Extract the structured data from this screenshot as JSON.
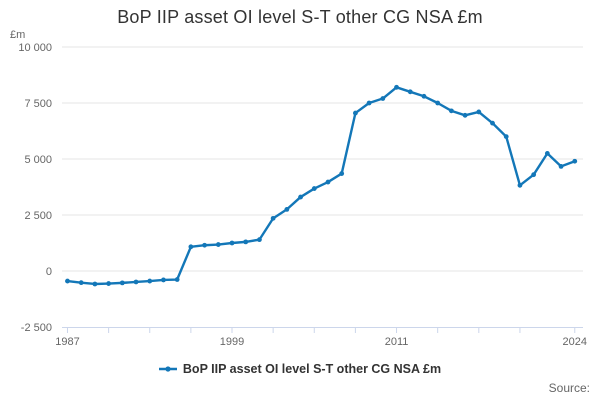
{
  "title": "BoP IIP asset OI level S-T other CG NSA £m",
  "y_axis": {
    "unit_label": "£m",
    "ticks": [
      {
        "value": 10000,
        "label": "10 000"
      },
      {
        "value": 7500,
        "label": "7 500"
      },
      {
        "value": 5000,
        "label": "5 000"
      },
      {
        "value": 2500,
        "label": "2 500"
      },
      {
        "value": 0,
        "label": "0"
      },
      {
        "value": -2500,
        "label": "-2 500"
      }
    ]
  },
  "x_axis": {
    "tick_years": [
      1987,
      1990,
      1993,
      1996,
      1999,
      2002,
      2005,
      2008,
      2011,
      2014,
      2017,
      2020,
      2024
    ],
    "labels": [
      {
        "year": 1987,
        "label": "1987"
      },
      {
        "year": 1999,
        "label": "1999"
      },
      {
        "year": 2011,
        "label": "2011"
      },
      {
        "year": 2024,
        "label": "2024"
      }
    ]
  },
  "legend": {
    "label": "BoP IIP asset OI level S-T other CG NSA £m"
  },
  "source": {
    "text": "Source:"
  },
  "colors": {
    "line": "#1377b8",
    "grid": "#e6e6e6",
    "axis": "#ccd6eb",
    "title_text": "#333333",
    "axis_text": "#666666",
    "legend_text": "#333333"
  },
  "chart_data": {
    "type": "line",
    "title": "BoP IIP asset OI level S-T other CG NSA £m",
    "xlabel": "",
    "ylabel": "£m",
    "x_range": [
      1986.6,
      2024.6
    ],
    "y_range": [
      -2500,
      10000
    ],
    "grid": "horizontal",
    "legend_position": "bottom-center",
    "series": [
      {
        "name": "BoP IIP asset OI level S-T other CG NSA £m",
        "x": [
          1987,
          1988,
          1989,
          1990,
          1991,
          1992,
          1993,
          1994,
          1995,
          1996,
          1997,
          1998,
          1999,
          2000,
          2001,
          2002,
          2003,
          2004,
          2005,
          2006,
          2007,
          2008,
          2009,
          2010,
          2011,
          2012,
          2013,
          2014,
          2015,
          2016,
          2017,
          2018,
          2019,
          2020,
          2021,
          2022,
          2023,
          2024
        ],
        "values": [
          -450,
          -520,
          -580,
          -560,
          -530,
          -490,
          -450,
          -400,
          -380,
          1080,
          1150,
          1180,
          1250,
          1300,
          1400,
          2350,
          2750,
          3300,
          3680,
          3970,
          4350,
          7050,
          7500,
          7700,
          8200,
          8000,
          7800,
          7500,
          7150,
          6950,
          7100,
          6600,
          6000,
          3825,
          4300,
          5250,
          4670,
          4900
        ]
      }
    ]
  }
}
